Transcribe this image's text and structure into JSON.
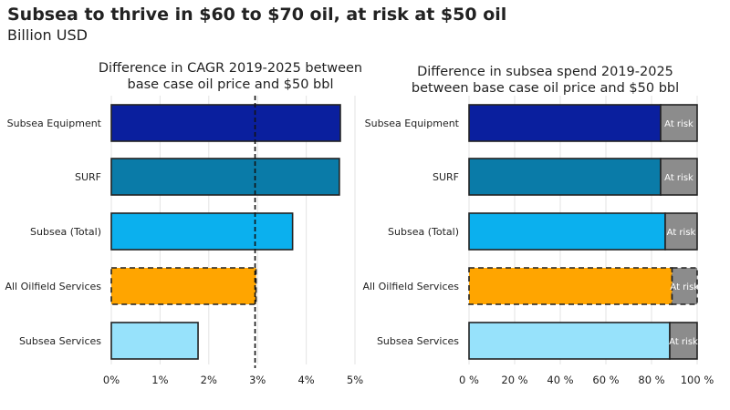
{
  "header": {
    "title": "Subsea to thrive in $60 to $70 oil, at risk at $50 oil",
    "subtitle": "Billion USD"
  },
  "chart_data": [
    {
      "type": "bar",
      "orientation": "horizontal",
      "title_lines": [
        "Difference in CAGR 2019-2025 between",
        "base case oil price and $50 bbl"
      ],
      "categories": [
        "Subsea Equipment",
        "SURF",
        "Subsea (Total)",
        "All Oilfield Services",
        "Subsea Services"
      ],
      "values": [
        4.7,
        4.68,
        3.72,
        2.97,
        1.78
      ],
      "colors": [
        "#0a1f9e",
        "#0a7ba8",
        "#0bb0ee",
        "#ffa500",
        "#97e2fb"
      ],
      "dashed_categories": [
        "All Oilfield Services"
      ],
      "reference_line": 2.95,
      "xlim": [
        0,
        5
      ],
      "xticks": [
        0,
        1,
        2,
        3,
        4,
        5
      ],
      "xtick_labels": [
        "0%",
        "1%",
        "2%",
        "3%",
        "4%",
        "5%"
      ],
      "grid": true,
      "legend": "none"
    },
    {
      "type": "bar",
      "orientation": "horizontal",
      "stacked": true,
      "title_lines": [
        "Difference in subsea spend 2019-2025",
        "between base case oil price and $50 bbl"
      ],
      "categories": [
        "Subsea Equipment",
        "SURF",
        "Subsea (Total)",
        "All Oilfield Services",
        "Subsea Services"
      ],
      "series": [
        {
          "values": [
            84,
            84,
            86,
            89,
            88
          ],
          "colors": [
            "#0a1f9e",
            "#0a7ba8",
            "#0bb0ee",
            "#ffa500",
            "#97e2fb"
          ]
        },
        {
          "values": [
            16,
            16,
            14,
            11,
            12
          ],
          "color": "#8c8c8c",
          "label": "At risk"
        }
      ],
      "dashed_categories": [
        "All Oilfield Services"
      ],
      "xlim": [
        0,
        100
      ],
      "xticks": [
        0,
        20,
        40,
        60,
        80,
        100
      ],
      "xtick_labels": [
        "0 %",
        "20 %",
        "40 %",
        "60 %",
        "80 %",
        "100 %"
      ],
      "grid": true,
      "legend": "none"
    }
  ]
}
